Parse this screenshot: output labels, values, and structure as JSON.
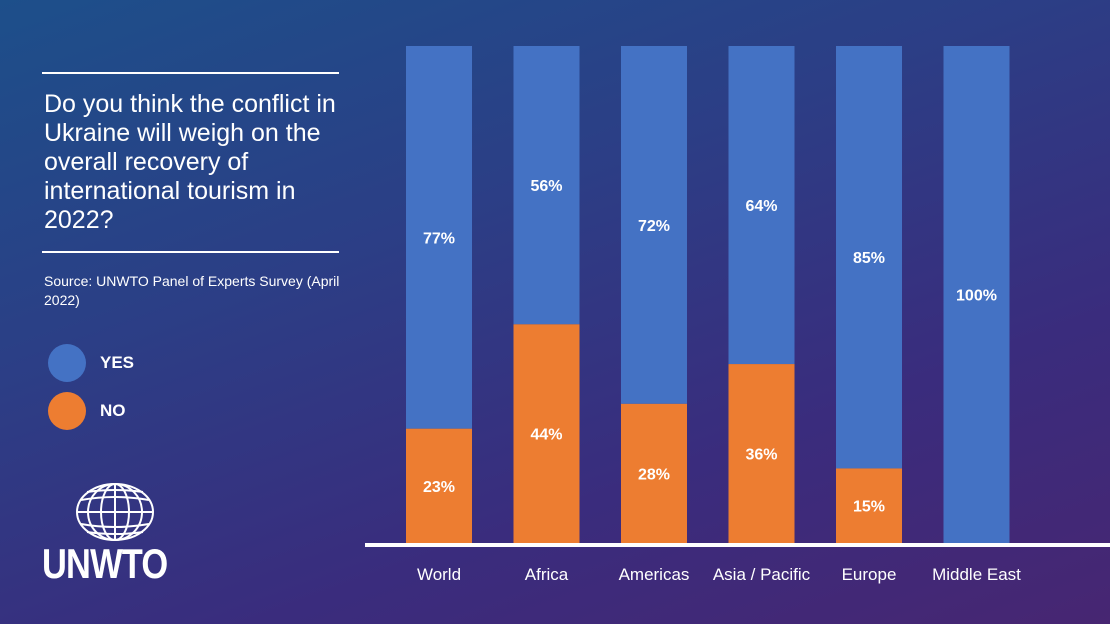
{
  "question": "Do you think the conflict in Ukraine will weigh on the overall recovery of international tourism in 2022?",
  "source": "Source: UNWTO Panel of Experts Survey (April 2022)",
  "legend": {
    "yes": "YES",
    "no": "NO"
  },
  "logo_text": "UNWTO",
  "colors": {
    "yes": "#4472c4",
    "no": "#ed7d31"
  },
  "chart_data": {
    "type": "bar",
    "stacked": true,
    "categories": [
      "World",
      "Africa",
      "Americas",
      "Asia / Pacific",
      "Europe",
      "Middle East"
    ],
    "series": [
      {
        "name": "YES",
        "values": [
          77,
          56,
          72,
          64,
          85,
          100
        ],
        "labels": [
          "77%",
          "56%",
          "72%",
          "64%",
          "85%",
          "100%"
        ]
      },
      {
        "name": "NO",
        "values": [
          23,
          44,
          28,
          36,
          15,
          0
        ],
        "labels": [
          "23%",
          "44%",
          "28%",
          "36%",
          "15%",
          ""
        ]
      }
    ],
    "ylim": [
      0,
      100
    ],
    "grid": false,
    "legend_position": "left"
  }
}
